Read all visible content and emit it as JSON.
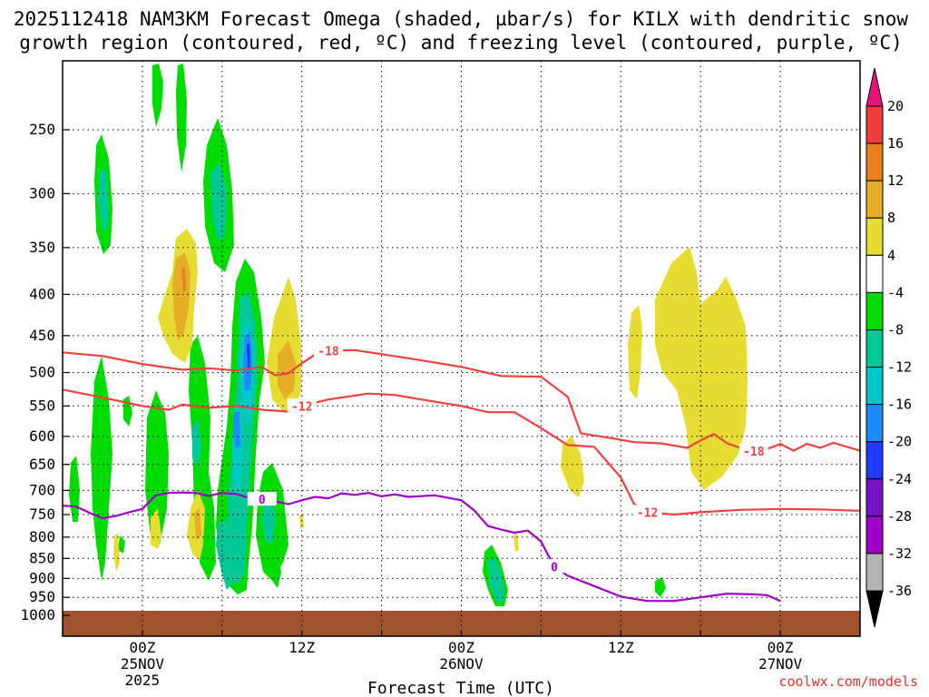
{
  "title_line1": "2025112418 NAM3KM Forecast Omega (shaded, µbar/s) for KILX with dendritic snow",
  "title_line2": "growth region (contoured, red, ºC) and freezing level (contoured, purple, ºC)",
  "credit": "coolwx.com/models",
  "chart_data": {
    "type": "heatmap",
    "title": "2025112418 NAM3KM Forecast Omega (shaded, µbar/s) for KILX with dendritic snow growth region (contoured, red, ºC) and freezing level (contoured, purple, ºC)",
    "xlabel": "Forecast Time (UTC)",
    "ylabel": "",
    "x_ticks": [
      {
        "hour": 0,
        "lines": [
          "00Z",
          "25NOV",
          "2025"
        ]
      },
      {
        "hour": 12,
        "lines": [
          "12Z"
        ]
      },
      {
        "hour": 24,
        "lines": [
          "00Z",
          "26NOV"
        ]
      },
      {
        "hour": 36,
        "lines": [
          "12Z"
        ]
      },
      {
        "hour": 48,
        "lines": [
          "00Z",
          "27NOV"
        ]
      }
    ],
    "xlim_hours": [
      -6,
      54
    ],
    "y_ticks": [
      250,
      300,
      350,
      400,
      450,
      500,
      550,
      600,
      650,
      700,
      750,
      800,
      850,
      900,
      950,
      1000
    ],
    "ylim_hpa": [
      1010,
      200
    ],
    "y_scale": "log-pressure (inverted)",
    "grid": true,
    "colorbar": {
      "units": "µbar/s",
      "labels": [
        "20",
        "16",
        "12",
        "8",
        "4",
        "-4",
        "-8",
        "-12",
        "-16",
        "-20",
        "-24",
        "-28",
        "-32",
        "-36"
      ],
      "boundaries": [
        20,
        16,
        12,
        8,
        4,
        -4,
        -8,
        -12,
        -16,
        -20,
        -24,
        -28,
        -32,
        -36
      ],
      "top_arrow_color": "#e8117a",
      "bottom_arrow_color": "#000000",
      "bins": [
        {
          "range": [
            16,
            20
          ],
          "color": "#f23c3c"
        },
        {
          "range": [
            12,
            16
          ],
          "color": "#ea8020"
        },
        {
          "range": [
            8,
            12
          ],
          "color": "#e6ae28"
        },
        {
          "range": [
            4,
            8
          ],
          "color": "#e6dc32"
        },
        {
          "range": [
            -4,
            4
          ],
          "color": "#ffffff"
        },
        {
          "range": [
            -8,
            -4
          ],
          "color": "#00dc00"
        },
        {
          "range": [
            -12,
            -8
          ],
          "color": "#00c896"
        },
        {
          "range": [
            -16,
            -12
          ],
          "color": "#00c8c8"
        },
        {
          "range": [
            -20,
            -16
          ],
          "color": "#1e8cff"
        },
        {
          "range": [
            -24,
            -20
          ],
          "color": "#1e3cff"
        },
        {
          "range": [
            -28,
            -24
          ],
          "color": "#7814c8"
        },
        {
          "range": [
            -32,
            -28
          ],
          "color": "#a000c8"
        },
        {
          "range": [
            -36,
            -32
          ],
          "color": "#b4b4b4"
        }
      ]
    },
    "contours": [
      {
        "label": "-18",
        "color": "#f04040",
        "points": [
          [
            -6,
            472
          ],
          [
            -3,
            477
          ],
          [
            0,
            488
          ],
          [
            3,
            496
          ],
          [
            5,
            494
          ],
          [
            7,
            497
          ],
          [
            9,
            492
          ],
          [
            10,
            504
          ],
          [
            11,
            501
          ],
          [
            12,
            487
          ],
          [
            13,
            475
          ],
          [
            14,
            470
          ],
          [
            16,
            469
          ],
          [
            20,
            480
          ],
          [
            24,
            492
          ],
          [
            27,
            505
          ],
          [
            30,
            506
          ],
          [
            32,
            536
          ],
          [
            33,
            595
          ],
          [
            35,
            602
          ],
          [
            37,
            610
          ],
          [
            39,
            612
          ],
          [
            41,
            620
          ],
          [
            42,
            607
          ],
          [
            43,
            596
          ],
          [
            44,
            612
          ],
          [
            45,
            620
          ],
          [
            46,
            626
          ],
          [
            47,
            622
          ],
          [
            48,
            613
          ],
          [
            49,
            625
          ],
          [
            50,
            613
          ],
          [
            51,
            620
          ],
          [
            52,
            611
          ],
          [
            54,
            625
          ]
        ]
      },
      {
        "label": "-12",
        "color": "#f04040",
        "points": [
          [
            -6,
            525
          ],
          [
            -3,
            537
          ],
          [
            0,
            550
          ],
          [
            2,
            556
          ],
          [
            3,
            548
          ],
          [
            5,
            553
          ],
          [
            7,
            550
          ],
          [
            9,
            556
          ],
          [
            11,
            559
          ],
          [
            12,
            550
          ],
          [
            14,
            540
          ],
          [
            17,
            531
          ],
          [
            19,
            533
          ],
          [
            21,
            540
          ],
          [
            24,
            550
          ],
          [
            26,
            560
          ],
          [
            28,
            560
          ],
          [
            30,
            586
          ],
          [
            32,
            615
          ],
          [
            34,
            618
          ],
          [
            36,
            675
          ],
          [
            37,
            728
          ],
          [
            38,
            745
          ],
          [
            40,
            750
          ],
          [
            42,
            745
          ],
          [
            45,
            740
          ],
          [
            48,
            738
          ],
          [
            51,
            739
          ],
          [
            54,
            742
          ]
        ]
      },
      {
        "label": "0",
        "color": "#a000c8",
        "points": [
          [
            -6,
            731
          ],
          [
            -5,
            733
          ],
          [
            -4,
            746
          ],
          [
            -3,
            758
          ],
          [
            -2,
            753
          ],
          [
            -1,
            745
          ],
          [
            0,
            738
          ],
          [
            1,
            710
          ],
          [
            2,
            705
          ],
          [
            3,
            704
          ],
          [
            4,
            705
          ],
          [
            5,
            711
          ],
          [
            6,
            705
          ],
          [
            7,
            707
          ],
          [
            8,
            715
          ],
          [
            9,
            718
          ],
          [
            10,
            722
          ],
          [
            11,
            728
          ],
          [
            12,
            720
          ],
          [
            13,
            713
          ],
          [
            14,
            716
          ],
          [
            15,
            706
          ],
          [
            16,
            709
          ],
          [
            17,
            705
          ],
          [
            18,
            712
          ],
          [
            19,
            708
          ],
          [
            20,
            713
          ],
          [
            22,
            710
          ],
          [
            24,
            720
          ],
          [
            25,
            742
          ],
          [
            26,
            775
          ],
          [
            27,
            783
          ],
          [
            28,
            790
          ],
          [
            29,
            785
          ],
          [
            30,
            810
          ],
          [
            30.5,
            840
          ],
          [
            31,
            870
          ],
          [
            32,
            893
          ],
          [
            34,
            920
          ],
          [
            36,
            948
          ],
          [
            38,
            960
          ],
          [
            40,
            960
          ],
          [
            42,
            950
          ],
          [
            44,
            940
          ],
          [
            46,
            942
          ],
          [
            47,
            944
          ],
          [
            48,
            960
          ]
        ]
      }
    ]
  }
}
